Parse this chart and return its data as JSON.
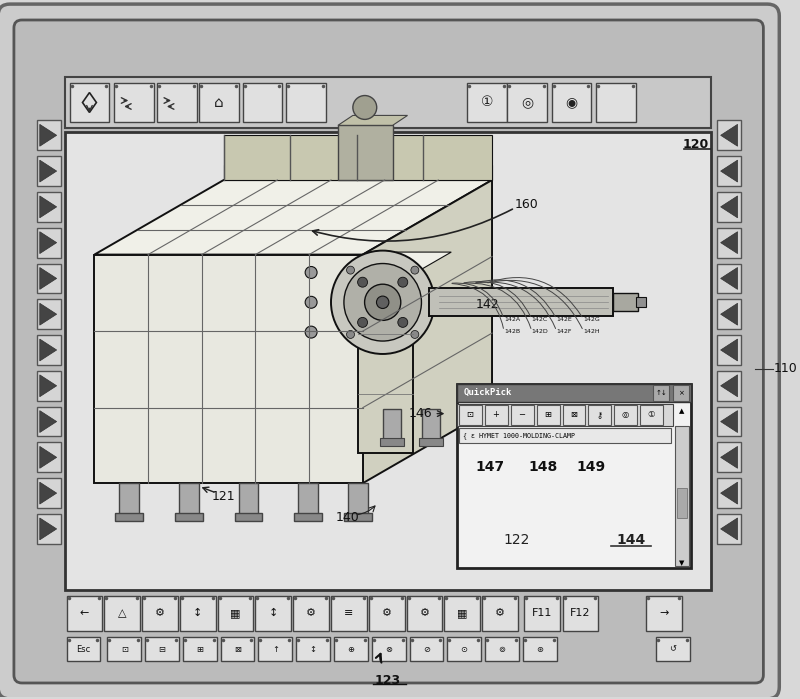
{
  "bg_color": "#d8d8d8",
  "label_110": "110",
  "label_120": "120",
  "label_121": "121",
  "label_122": "122",
  "label_123": "123",
  "label_140": "140",
  "label_142": "142",
  "label_142subs": [
    "142A",
    "142C",
    "142E",
    "142G",
    "142B",
    "142D",
    "142F",
    "142H"
  ],
  "label_144": "144",
  "label_146": "146",
  "label_147": "147",
  "label_148": "148",
  "label_149": "149",
  "label_160": "160",
  "quickpick_text": "QuickPick",
  "hymet_text": "HYMET 1000-MOLDING-CLAMP"
}
